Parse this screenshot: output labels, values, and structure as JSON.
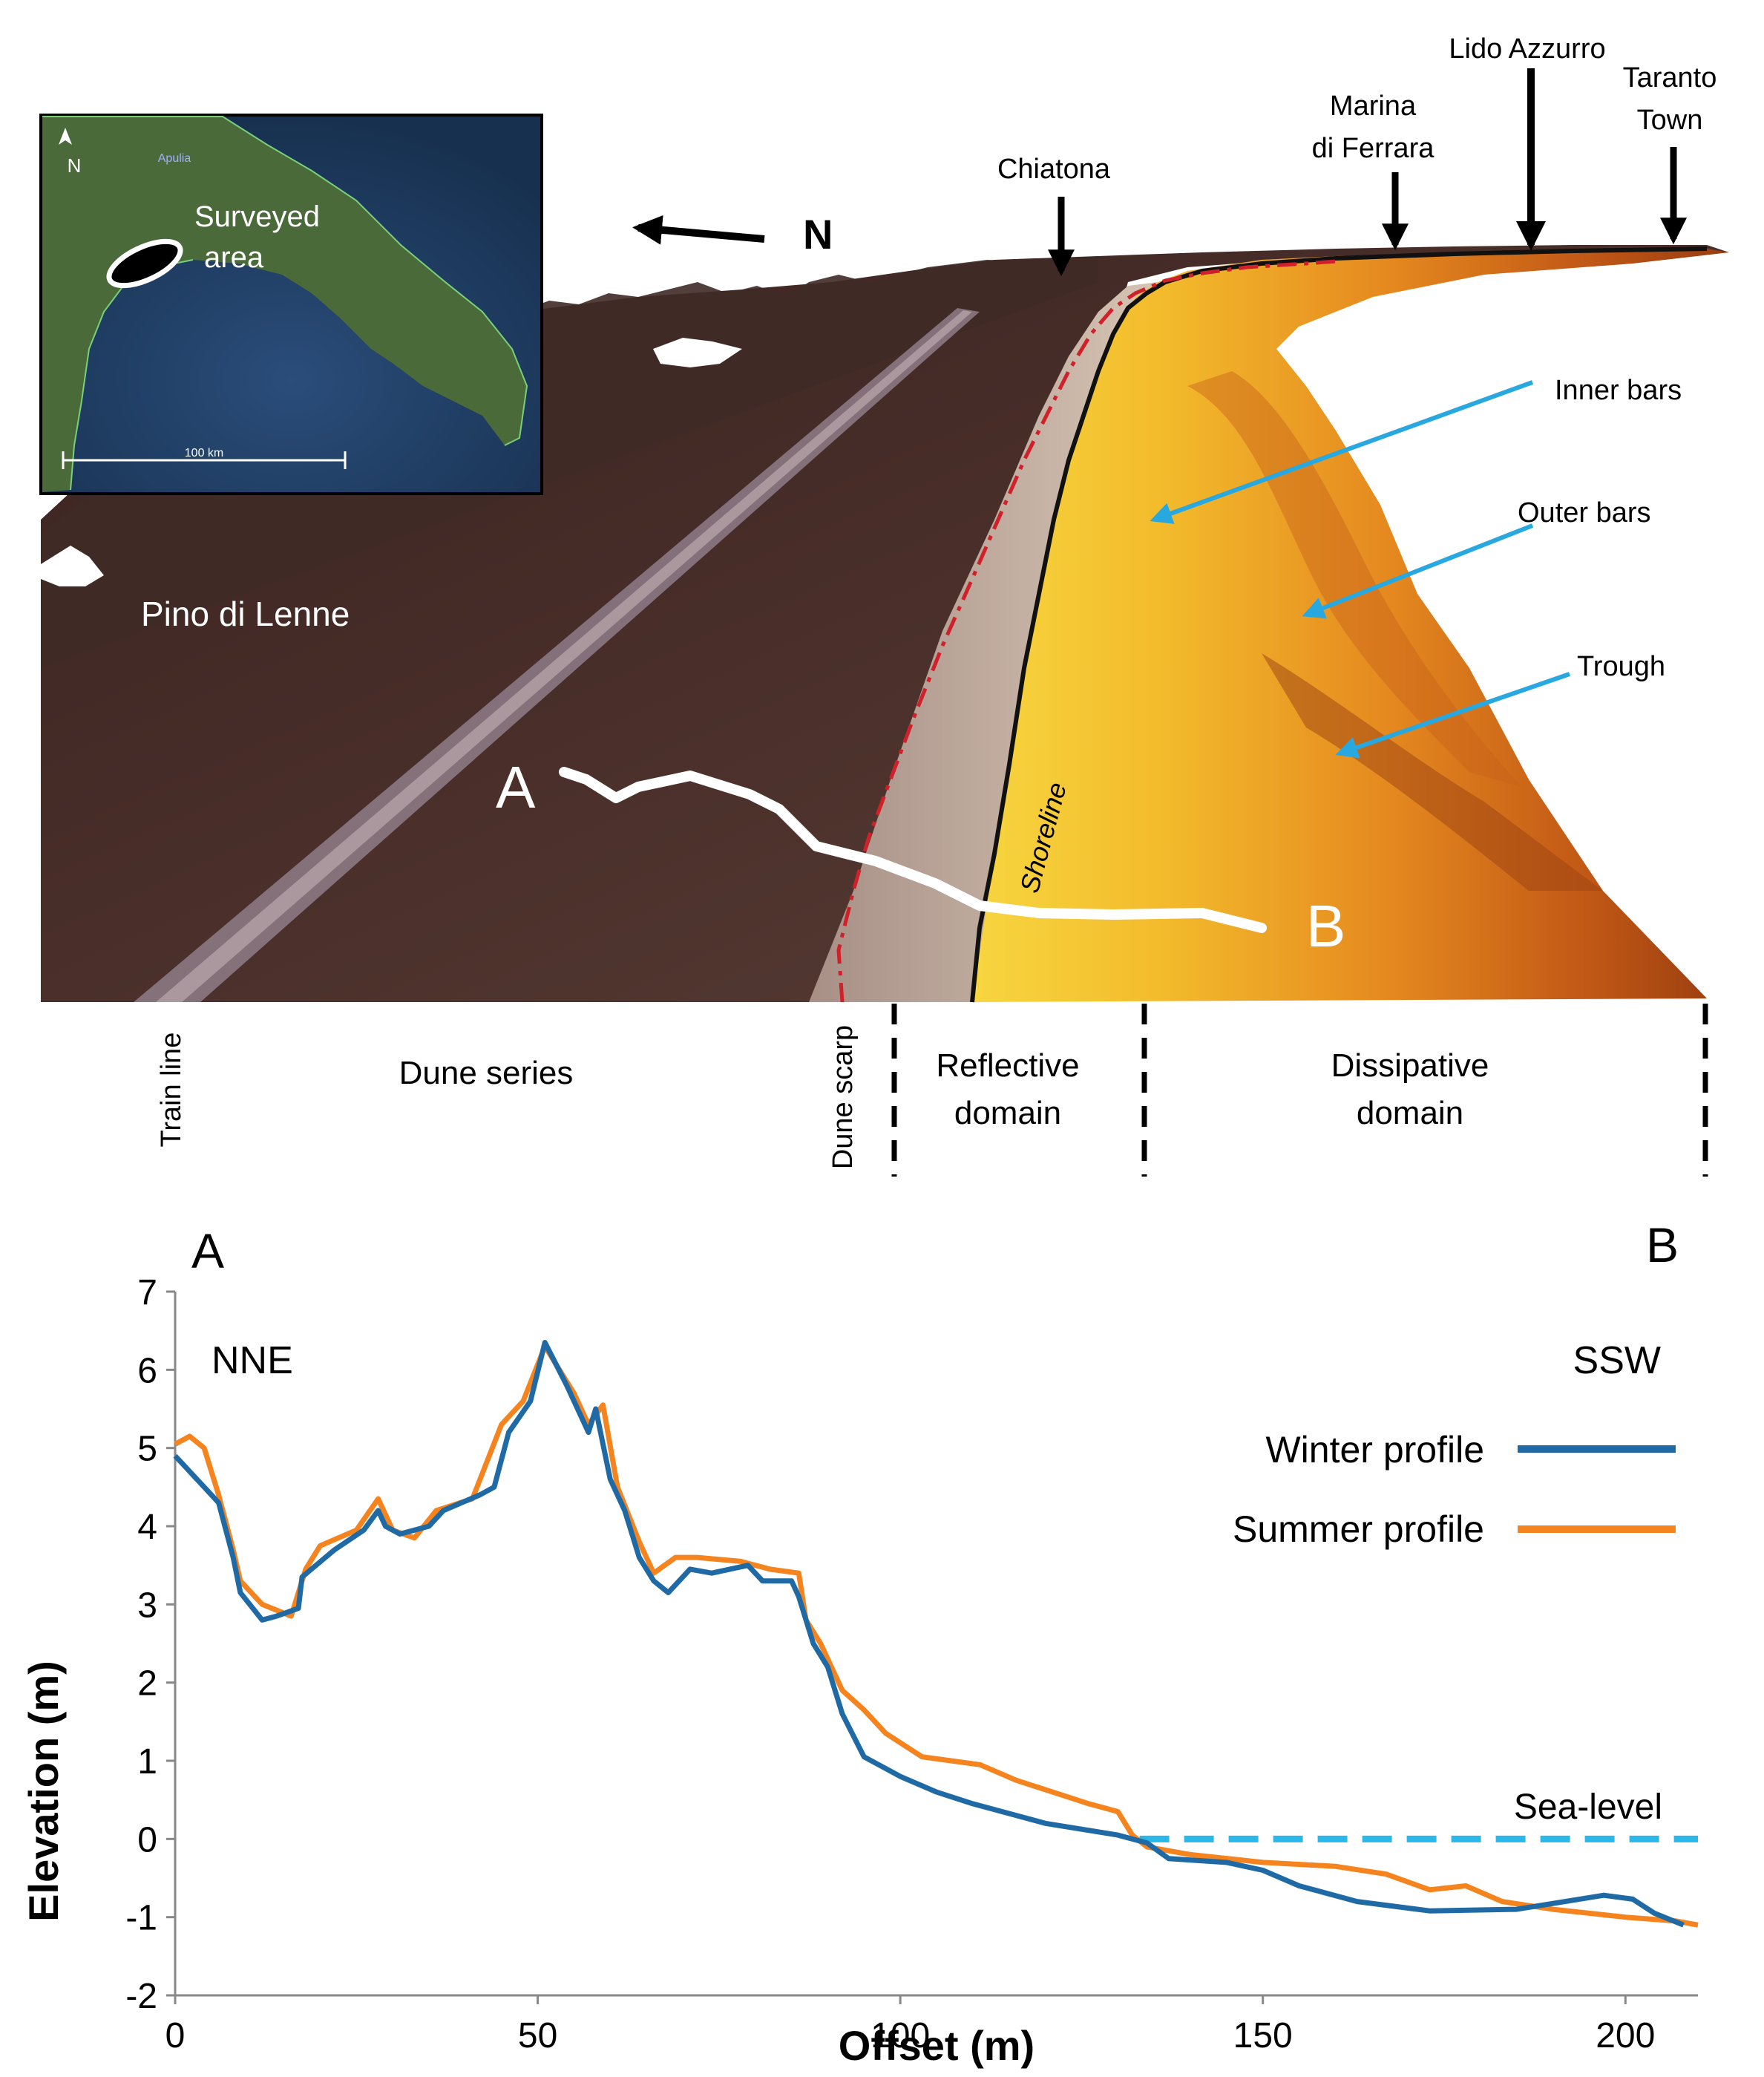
{
  "map": {
    "north_label": "N",
    "places": [
      {
        "name": "Chiatona"
      },
      {
        "name": "Marina di Ferrara",
        "lines": [
          "Marina",
          "di Ferrara"
        ]
      },
      {
        "name": "Lido Azzurro"
      },
      {
        "name": "Taranto Town",
        "lines": [
          "Taranto",
          "Town"
        ]
      }
    ],
    "features": {
      "inner_bars": "Inner bars",
      "outer_bars": "Outer bars",
      "trough": "Trough",
      "pino": "Pino di Lenne",
      "shoreline": "Shoreline",
      "point_a": "A",
      "point_b": "B"
    },
    "inset": {
      "surveyed": "Surveyed",
      "area": "area",
      "scale": "100 km",
      "compass": "N",
      "region": "Apulia"
    }
  },
  "zones": {
    "train_line": "Train line",
    "dune_series": "Dune series",
    "dune_scarp": "Dune scarp",
    "reflective": [
      "Reflective",
      "domain"
    ],
    "dissipative": [
      "Dissipative",
      "domain"
    ]
  },
  "colors": {
    "winter": "#1f6aa5",
    "summer": "#f5841f",
    "sea_level": "#2bb8e8",
    "arrow_blue": "#29a8e0",
    "shoreline_red": "#d0202a"
  },
  "chart_data": {
    "type": "line",
    "corner_left": "A",
    "corner_right": "B",
    "dir_left": "NNE",
    "dir_right": "SSW",
    "xlabel": "Offset (m)",
    "ylabel": "Elevation (m)",
    "xlim": [
      0,
      210
    ],
    "ylim": [
      -2,
      7
    ],
    "xticks": [
      0,
      50,
      100,
      150,
      200
    ],
    "yticks": [
      -2,
      -1,
      0,
      1,
      2,
      3,
      4,
      5,
      6,
      7
    ],
    "sea_level": {
      "label": "Sea-level",
      "y": 0,
      "from_x": 133
    },
    "legend": "right",
    "series": [
      {
        "name": "Winter profile",
        "color": "#1f6aa5",
        "points": [
          [
            0,
            4.9
          ],
          [
            4,
            4.5
          ],
          [
            6,
            4.3
          ],
          [
            8,
            3.6
          ],
          [
            9,
            3.15
          ],
          [
            12,
            2.8
          ],
          [
            14,
            2.85
          ],
          [
            17,
            2.95
          ],
          [
            17.5,
            3.35
          ],
          [
            22,
            3.7
          ],
          [
            26,
            3.95
          ],
          [
            28,
            4.2
          ],
          [
            29,
            4.0
          ],
          [
            31,
            3.9
          ],
          [
            35,
            4.0
          ],
          [
            37,
            4.2
          ],
          [
            42,
            4.4
          ],
          [
            44,
            4.5
          ],
          [
            46,
            5.2
          ],
          [
            49,
            5.6
          ],
          [
            51,
            6.35
          ],
          [
            54,
            5.8
          ],
          [
            57,
            5.2
          ],
          [
            58,
            5.5
          ],
          [
            60,
            4.6
          ],
          [
            62,
            4.2
          ],
          [
            64,
            3.6
          ],
          [
            66,
            3.3
          ],
          [
            68,
            3.15
          ],
          [
            71,
            3.45
          ],
          [
            74,
            3.4
          ],
          [
            79,
            3.5
          ],
          [
            81,
            3.3
          ],
          [
            85,
            3.3
          ],
          [
            86,
            3.1
          ],
          [
            88,
            2.5
          ],
          [
            90,
            2.2
          ],
          [
            92,
            1.6
          ],
          [
            95,
            1.05
          ],
          [
            100,
            0.8
          ],
          [
            105,
            0.6
          ],
          [
            110,
            0.45
          ],
          [
            120,
            0.2
          ],
          [
            130,
            0.05
          ],
          [
            134,
            -0.05
          ],
          [
            137,
            -0.25
          ],
          [
            145,
            -0.3
          ],
          [
            150,
            -0.4
          ],
          [
            155,
            -0.6
          ],
          [
            163,
            -0.8
          ],
          [
            173,
            -0.92
          ],
          [
            185,
            -0.9
          ],
          [
            197,
            -0.72
          ],
          [
            201,
            -0.77
          ],
          [
            204,
            -0.95
          ],
          [
            208,
            -1.1
          ]
        ]
      },
      {
        "name": "Summer profile",
        "color": "#f5841f",
        "points": [
          [
            0,
            5.05
          ],
          [
            2,
            5.15
          ],
          [
            4,
            5.0
          ],
          [
            6,
            4.4
          ],
          [
            8,
            3.7
          ],
          [
            9,
            3.3
          ],
          [
            12,
            3.0
          ],
          [
            16,
            2.85
          ],
          [
            18,
            3.45
          ],
          [
            20,
            3.75
          ],
          [
            25,
            3.95
          ],
          [
            28,
            4.35
          ],
          [
            30,
            3.95
          ],
          [
            33,
            3.85
          ],
          [
            36,
            4.2
          ],
          [
            41,
            4.35
          ],
          [
            45,
            5.3
          ],
          [
            48,
            5.6
          ],
          [
            51,
            6.3
          ],
          [
            55,
            5.7
          ],
          [
            57,
            5.3
          ],
          [
            59,
            5.55
          ],
          [
            61,
            4.5
          ],
          [
            64,
            3.8
          ],
          [
            66,
            3.4
          ],
          [
            69,
            3.6
          ],
          [
            72,
            3.6
          ],
          [
            78,
            3.55
          ],
          [
            82,
            3.45
          ],
          [
            86,
            3.4
          ],
          [
            87,
            2.8
          ],
          [
            89,
            2.5
          ],
          [
            92,
            1.9
          ],
          [
            95,
            1.65
          ],
          [
            98,
            1.35
          ],
          [
            103,
            1.05
          ],
          [
            107,
            1.0
          ],
          [
            111,
            0.95
          ],
          [
            116,
            0.75
          ],
          [
            121,
            0.6
          ],
          [
            126,
            0.45
          ],
          [
            130,
            0.35
          ],
          [
            132,
            0.05
          ],
          [
            134,
            -0.1
          ],
          [
            140,
            -0.2
          ],
          [
            150,
            -0.3
          ],
          [
            160,
            -0.35
          ],
          [
            167,
            -0.45
          ],
          [
            173,
            -0.65
          ],
          [
            178,
            -0.6
          ],
          [
            183,
            -0.8
          ],
          [
            190,
            -0.9
          ],
          [
            200,
            -1.0
          ],
          [
            207,
            -1.05
          ],
          [
            210,
            -1.1
          ]
        ]
      }
    ]
  }
}
